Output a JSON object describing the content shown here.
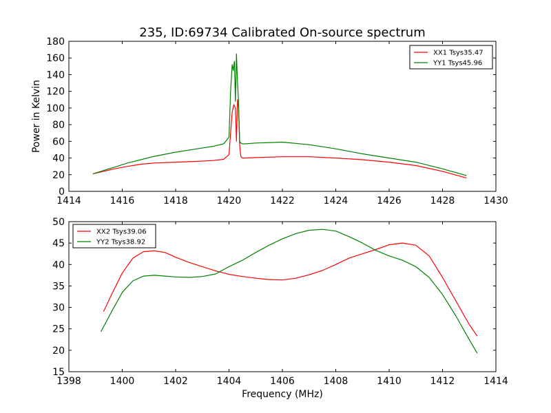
{
  "chart_data": [
    {
      "type": "line",
      "title": "235, ID:69734 Calibrated On-source spectrum",
      "xlabel": "",
      "ylabel": "Power in Kelvin",
      "xlim": [
        1414,
        1430
      ],
      "ylim": [
        0,
        180
      ],
      "xticks": [
        1414,
        1416,
        1418,
        1420,
        1422,
        1424,
        1426,
        1428,
        1430
      ],
      "yticks": [
        0,
        20,
        40,
        60,
        80,
        100,
        120,
        140,
        160,
        180
      ],
      "grid": false,
      "legend": "top-right",
      "series": [
        {
          "name": "XX1 Tsys35.47",
          "color": "#ff0000",
          "x": [
            1414.9,
            1415.3,
            1415.7,
            1416.2,
            1416.7,
            1417.2,
            1418.0,
            1418.8,
            1419.4,
            1419.8,
            1420.0,
            1420.06,
            1420.12,
            1420.18,
            1420.24,
            1420.28,
            1420.32,
            1420.36,
            1420.4,
            1420.44,
            1420.5,
            1420.6,
            1421.0,
            1422.0,
            1423.0,
            1424.0,
            1425.0,
            1426.0,
            1427.0,
            1428.0,
            1428.9
          ],
          "y": [
            21,
            24,
            27,
            30,
            32.5,
            34,
            35,
            36,
            37,
            38.5,
            44,
            70,
            95,
            104,
            100,
            60,
            110,
            100,
            55,
            42,
            40,
            40,
            40.5,
            41.5,
            41.5,
            40,
            38,
            35,
            31,
            24,
            16
          ]
        },
        {
          "name": "YY1 Tsys45.96",
          "color": "#008000",
          "x": [
            1414.9,
            1415.3,
            1415.7,
            1416.2,
            1416.7,
            1417.2,
            1418.0,
            1418.8,
            1419.4,
            1419.8,
            1420.0,
            1420.06,
            1420.12,
            1420.16,
            1420.2,
            1420.24,
            1420.28,
            1420.32,
            1420.36,
            1420.4,
            1420.44,
            1420.5,
            1420.6,
            1421.0,
            1422.0,
            1423.0,
            1424.0,
            1425.0,
            1426.0,
            1427.0,
            1428.0,
            1428.9
          ],
          "y": [
            21,
            25,
            29,
            34,
            38,
            42,
            47,
            51,
            54,
            57,
            65,
            120,
            152,
            145,
            156,
            108,
            165,
            130,
            105,
            60,
            58,
            57,
            57,
            58,
            59,
            56,
            51,
            45,
            40,
            35,
            27,
            19
          ]
        }
      ]
    },
    {
      "type": "line",
      "title": "",
      "xlabel": "Frequency (MHz)",
      "ylabel": "",
      "xlim": [
        1398,
        1414
      ],
      "ylim": [
        15,
        50
      ],
      "xticks": [
        1398,
        1400,
        1402,
        1404,
        1406,
        1408,
        1410,
        1412,
        1414
      ],
      "yticks": [
        15,
        20,
        25,
        30,
        35,
        40,
        45,
        50
      ],
      "grid": false,
      "legend": "top-left",
      "series": [
        {
          "name": "XX2 Tsys39.06",
          "color": "#ff0000",
          "x": [
            1399.3,
            1399.6,
            1400.0,
            1400.4,
            1400.8,
            1401.2,
            1401.6,
            1402.0,
            1402.5,
            1403.0,
            1403.5,
            1404.0,
            1404.5,
            1405.0,
            1405.5,
            1406.0,
            1406.5,
            1407.0,
            1407.5,
            1408.0,
            1408.5,
            1409.0,
            1409.5,
            1410.0,
            1410.5,
            1411.0,
            1411.5,
            1412.0,
            1412.5,
            1413.0,
            1413.3
          ],
          "y": [
            29,
            33,
            38,
            41.5,
            43,
            43.2,
            42.8,
            41.7,
            40.5,
            39.5,
            38.5,
            37.7,
            37.2,
            36.8,
            36.5,
            36.4,
            36.8,
            37.6,
            38.6,
            40,
            41.5,
            42.5,
            43.5,
            44.6,
            45,
            44.5,
            42,
            37,
            31.5,
            26,
            23.3
          ]
        },
        {
          "name": "YY2 Tsys38.92",
          "color": "#008000",
          "x": [
            1399.2,
            1399.6,
            1400.0,
            1400.4,
            1400.8,
            1401.2,
            1401.6,
            1402.0,
            1402.5,
            1403.0,
            1403.5,
            1404.0,
            1404.5,
            1405.0,
            1405.5,
            1406.0,
            1406.5,
            1407.0,
            1407.5,
            1408.0,
            1408.5,
            1409.0,
            1409.5,
            1410.0,
            1410.5,
            1411.0,
            1411.5,
            1412.0,
            1412.5,
            1413.0,
            1413.3
          ],
          "y": [
            24.3,
            29,
            33.5,
            36.2,
            37.3,
            37.5,
            37.3,
            37.1,
            37,
            37.2,
            37.8,
            39.5,
            41,
            42.8,
            44.5,
            46,
            47.2,
            48,
            48.2,
            47.8,
            46.5,
            45,
            43.3,
            42,
            41,
            39.5,
            37,
            33,
            28,
            22.5,
            19.3
          ]
        }
      ]
    }
  ]
}
